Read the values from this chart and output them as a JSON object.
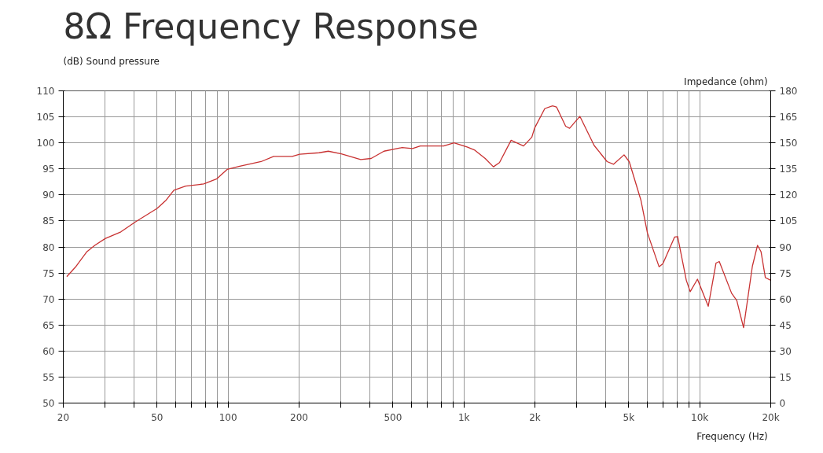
{
  "chart_data": {
    "type": "line",
    "title": "8Ω Frequency Response",
    "xlabel": "Frequency  (Hz)",
    "ylabel": "(dB)  Sound pressure",
    "y2label": "Impedance  (ohm)",
    "log": "x",
    "grid": true,
    "marker": "none",
    "line_style": "solid",
    "xlim": [
      20,
      20000
    ],
    "ylim": [
      50,
      110
    ],
    "y2lim": [
      0,
      180
    ],
    "xticks": [
      20,
      {
        "value": 30,
        "label": null
      },
      {
        "value": 40,
        "label": null
      },
      50,
      {
        "value": 60,
        "label": null
      },
      {
        "value": 70,
        "label": null
      },
      {
        "value": 80,
        "label": null
      },
      {
        "value": 90,
        "label": null
      },
      100,
      200,
      {
        "value": 300,
        "label": null
      },
      {
        "value": 400,
        "label": null
      },
      500,
      {
        "value": 600,
        "label": null
      },
      {
        "value": 700,
        "label": null
      },
      {
        "value": 800,
        "label": null
      },
      {
        "value": 900,
        "label": null
      },
      {
        "value": 1000,
        "label": "1k"
      },
      {
        "value": 2000,
        "label": "2k"
      },
      {
        "value": 3000,
        "label": null
      },
      {
        "value": 4000,
        "label": null
      },
      {
        "value": 5000,
        "label": "5k"
      },
      {
        "value": 6000,
        "label": null
      },
      {
        "value": 7000,
        "label": null
      },
      {
        "value": 8000,
        "label": null
      },
      {
        "value": 9000,
        "label": null
      },
      {
        "value": 10000,
        "label": "10k"
      },
      {
        "value": 20000,
        "label": "20k"
      }
    ],
    "yticks": [
      50,
      55,
      60,
      65,
      70,
      75,
      80,
      85,
      90,
      95,
      100,
      105,
      110
    ],
    "y2ticks": [
      0,
      15,
      30,
      45,
      60,
      75,
      90,
      105,
      120,
      135,
      150,
      165,
      180
    ],
    "series": [
      {
        "color": "#c83232",
        "x": [
          20.7,
          22.5,
          25.2,
          27.2,
          30.1,
          35.1,
          40.4,
          50,
          54.6,
          58.9,
          66,
          78.8,
          89.6,
          99,
          112,
          138,
          156,
          187,
          201,
          243,
          266,
          302,
          365,
          404,
          458,
          547,
          605,
          653,
          820,
          908,
          1031,
          1112,
          1231,
          1334,
          1415,
          1585,
          1790,
          1941,
          1992,
          2203,
          2376,
          2470,
          2700,
          2806,
          3104,
          3567,
          4048,
          4314,
          4776,
          5023,
          5630,
          6000,
          6720,
          6980,
          7820,
          8060,
          8770,
          9110,
          9780,
          10870,
          11720,
          12100,
          13650,
          14360,
          15340,
          16720,
          17580,
          18190,
          18980,
          20000
        ],
        "values": [
          74.3,
          76.1,
          79.1,
          80.3,
          81.6,
          82.9,
          84.8,
          87.4,
          89.0,
          90.9,
          91.7,
          92.1,
          93.1,
          94.9,
          95.5,
          96.4,
          97.4,
          97.4,
          97.8,
          98.1,
          98.4,
          97.9,
          96.8,
          97.0,
          98.4,
          99.1,
          98.9,
          99.4,
          99.4,
          100.0,
          99.2,
          98.6,
          97.0,
          95.4,
          96.2,
          100.5,
          99.4,
          101.1,
          102.8,
          106.6,
          107.1,
          106.9,
          103.2,
          102.8,
          105.1,
          99.5,
          96.4,
          95.9,
          97.7,
          96.4,
          89.0,
          82.7,
          76.2,
          76.8,
          81.9,
          82.0,
          73.6,
          71.4,
          73.8,
          68.6,
          76.9,
          77.2,
          71.1,
          69.7,
          64.5,
          76.3,
          80.3,
          79.1,
          74.1,
          73.6
        ]
      }
    ]
  }
}
